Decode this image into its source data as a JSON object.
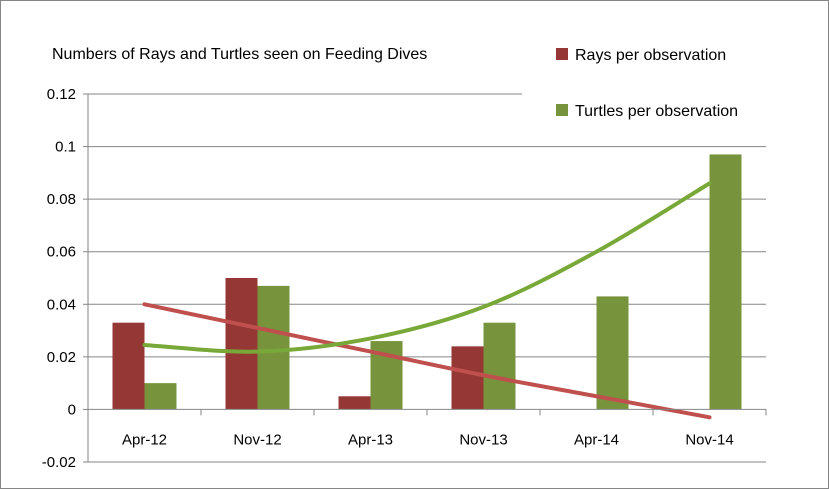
{
  "chart_data": {
    "type": "bar",
    "title": "Numbers of Rays and Turtles seen on Feeding Dives",
    "xlabel": "",
    "ylabel": "",
    "categories": [
      "Apr-12",
      "Nov-12",
      "Apr-13",
      "Nov-13",
      "Apr-14",
      "Nov-14"
    ],
    "ylim": [
      -0.02,
      0.12
    ],
    "yticks": [
      -0.02,
      0,
      0.02,
      0.04,
      0.06,
      0.08,
      0.1,
      0.12
    ],
    "grid": true,
    "legend_position": "top-right",
    "series": [
      {
        "name": "Rays per observation",
        "values": [
          0.033,
          0.05,
          0.005,
          0.024,
          0,
          0
        ],
        "color": "#953735"
      },
      {
        "name": "Turtles per observation",
        "values": [
          0.01,
          0.047,
          0.026,
          0.033,
          0.043,
          0.097
        ],
        "color": "#77933C"
      }
    ],
    "trendlines": [
      {
        "series": "Rays per observation",
        "kind": "linear",
        "values": [
          0.04,
          0.031,
          0.022,
          0.013,
          0.005,
          -0.003
        ],
        "color": "#C0504D"
      },
      {
        "series": "Turtles per observation",
        "kind": "polynomial",
        "values": [
          0.0245,
          0.022,
          0.027,
          0.039,
          0.06,
          0.086
        ],
        "color": "#77A838"
      }
    ]
  }
}
